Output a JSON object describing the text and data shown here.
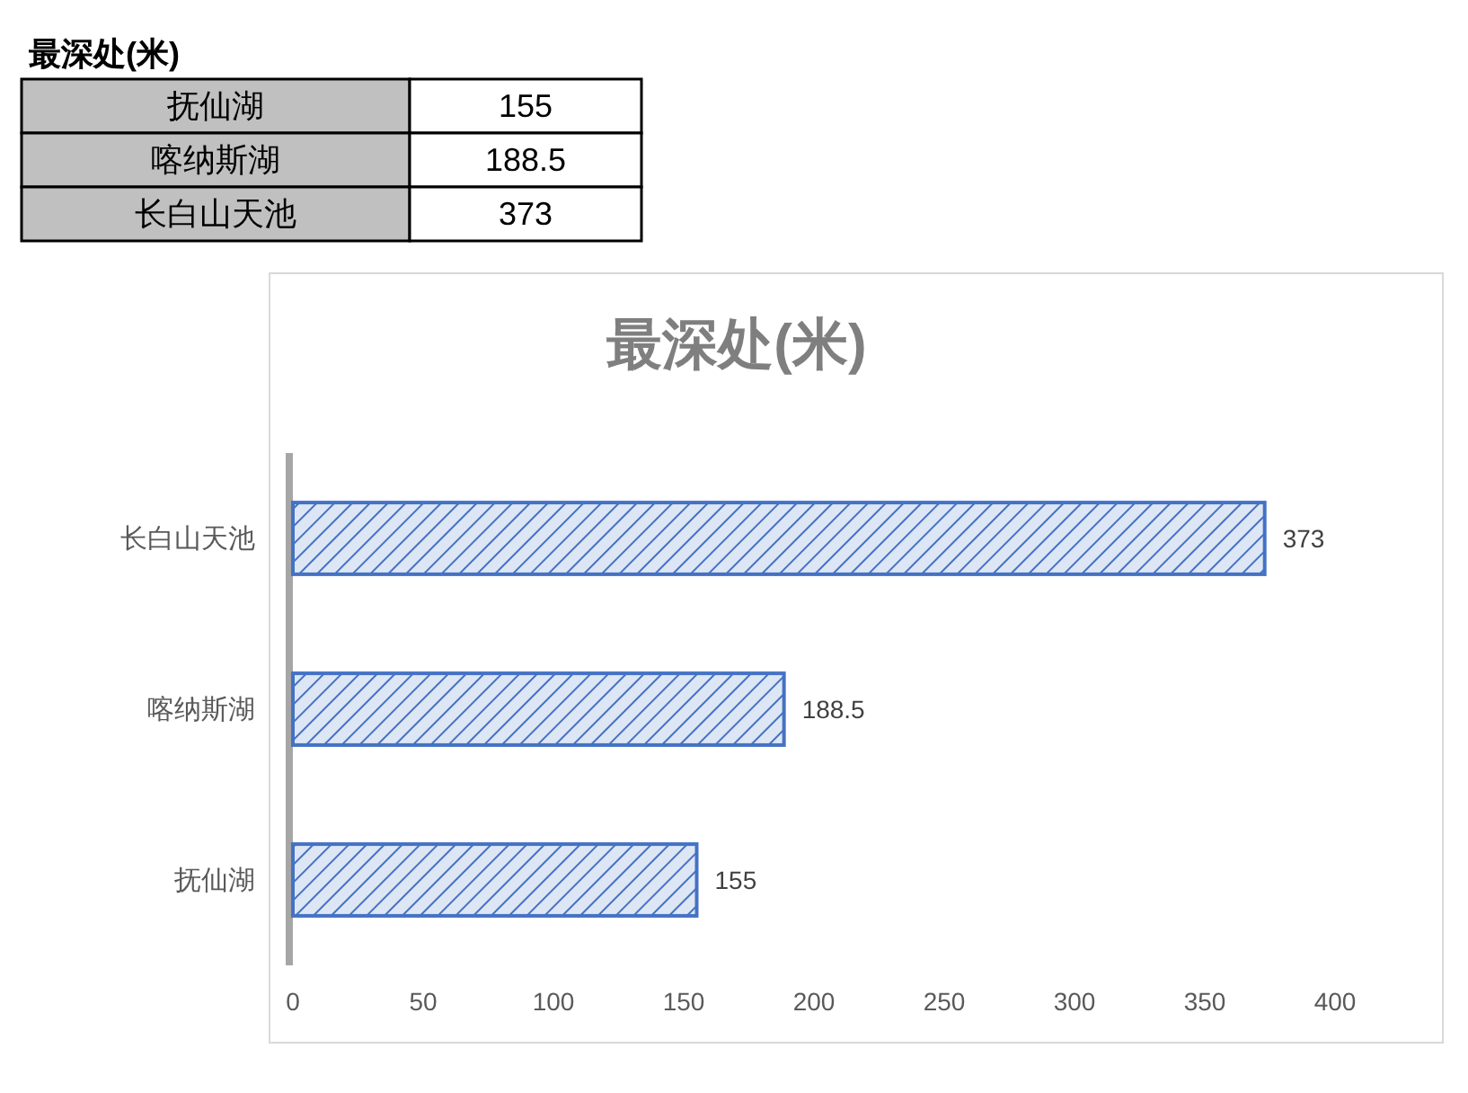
{
  "chart_data": [
    {
      "type": "other",
      "title": "最深处(米)",
      "categories": [
        "抚仙湖",
        "喀纳斯湖",
        "长白山天池"
      ],
      "values": [
        155,
        188.5,
        373
      ],
      "data_labels": true
    },
    {
      "type": "bar",
      "title": "最深处(米)",
      "orientation": "horizontal",
      "categories": [
        "长白山天池",
        "喀纳斯湖",
        "抚仙湖"
      ],
      "values": [
        373,
        188.5,
        155
      ],
      "color": "#4472c4",
      "xlim": [
        0,
        400
      ],
      "xticks": [
        0,
        50,
        100,
        150,
        200,
        250,
        300,
        350,
        400
      ],
      "data_labels": true
    }
  ]
}
